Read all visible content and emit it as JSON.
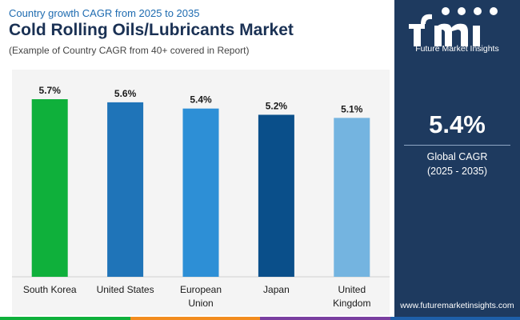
{
  "header": {
    "subtitle": "Country growth CAGR from 2025 to 2035",
    "title": "Cold Rolling Oils/Lubricants Market",
    "note": "(Example of Country CAGR from 40+ covered in Report)"
  },
  "chart_data": {
    "type": "bar",
    "categories": [
      [
        "South Korea"
      ],
      [
        "United States"
      ],
      [
        "European",
        "Union"
      ],
      [
        "Japan"
      ],
      [
        "United",
        "Kingdom"
      ]
    ],
    "values": [
      5.7,
      5.6,
      5.4,
      5.2,
      5.1
    ],
    "value_labels": [
      "5.7%",
      "5.6%",
      "5.4%",
      "5.2%",
      "5.1%"
    ],
    "colors": [
      "#0fb03b",
      "#1f74b8",
      "#2d8fd6",
      "#0a4f8a",
      "#74b4e0"
    ],
    "ylim": [
      0,
      5.7
    ],
    "grid": false,
    "legend": false
  },
  "sidebar": {
    "logo_text": "Future Market Insights",
    "kpi_value": "5.4%",
    "kpi_label": "Global CAGR",
    "kpi_period": "(2025 - 2035)",
    "website": "www.futuremarketinsights.com"
  },
  "colors": {
    "sidebar_bg": "#1e3a5f",
    "footer": [
      "#0fb03b",
      "#f28c1e",
      "#7a3fa0",
      "#1e5fa8"
    ]
  },
  "icons": [
    "fmi-logo-icon"
  ]
}
